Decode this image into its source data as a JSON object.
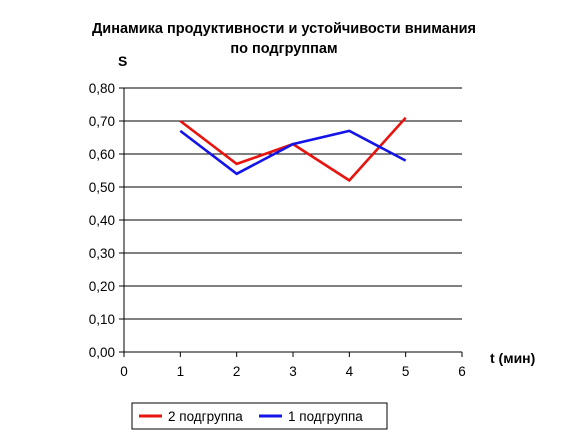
{
  "chart_data": {
    "type": "line",
    "title_line1": "Динамика продуктивности и устойчивости внимания",
    "title_line2": "по подгруппам",
    "ylabel": "S",
    "xlabel": "t (мин)",
    "xlim": [
      0,
      6
    ],
    "ylim": [
      0,
      0.8
    ],
    "x_ticks": [
      "0",
      "1",
      "2",
      "3",
      "4",
      "5",
      "6"
    ],
    "y_ticks": [
      "0,00",
      "0,10",
      "0,20",
      "0,30",
      "0,40",
      "0,50",
      "0,60",
      "0,70",
      "0,80"
    ],
    "grid": true,
    "legend_position": "bottom",
    "x": [
      1,
      2,
      3,
      4,
      5
    ],
    "series": [
      {
        "name": "2 подгруппа",
        "color": "#e8140f",
        "values": [
          0.7,
          0.57,
          0.63,
          0.52,
          0.71
        ]
      },
      {
        "name": "1 подгруппа",
        "color": "#1414e8",
        "values": [
          0.67,
          0.54,
          0.63,
          0.67,
          0.58
        ]
      }
    ]
  }
}
